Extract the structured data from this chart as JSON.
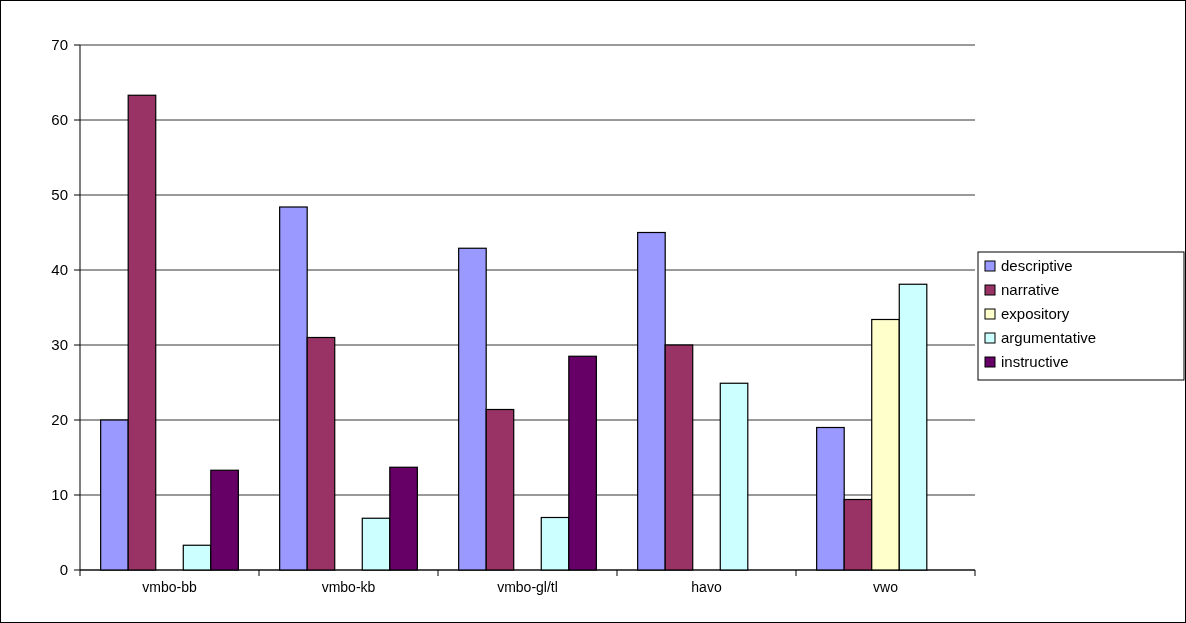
{
  "chart_data": {
    "type": "bar",
    "categories": [
      "vmbo-bb",
      "vmbo-kb",
      "vmbo-gl/tl",
      "havo",
      "vwo"
    ],
    "series": [
      {
        "name": "descriptive",
        "color": "#9999ff",
        "values": [
          20.0,
          48.4,
          42.9,
          45.0,
          19.0
        ]
      },
      {
        "name": "narrative",
        "color": "#993366",
        "values": [
          63.3,
          31.0,
          21.4,
          30.0,
          9.4
        ]
      },
      {
        "name": "expository",
        "color": "#ffffcc",
        "values": [
          null,
          null,
          null,
          null,
          33.4
        ]
      },
      {
        "name": "argumentative",
        "color": "#ccffff",
        "values": [
          3.3,
          6.9,
          7.0,
          24.9,
          38.1
        ]
      },
      {
        "name": "instructive",
        "color": "#660066",
        "values": [
          13.3,
          13.7,
          28.5,
          null,
          null
        ]
      }
    ],
    "ylim": [
      0,
      70
    ],
    "yticks": [
      0,
      10,
      20,
      30,
      40,
      50,
      60,
      70
    ],
    "grid": "y",
    "legend": "right"
  }
}
